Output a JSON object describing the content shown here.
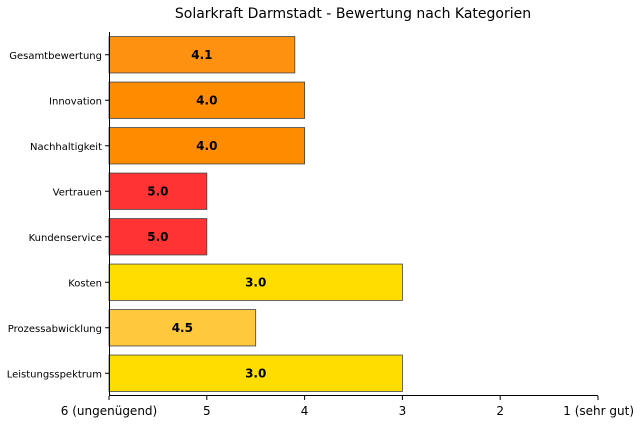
{
  "chart_data": {
    "type": "bar",
    "orientation": "horizontal",
    "title": "Solarkraft Darmstadt - Bewertung nach Kategorien",
    "xlabel": "",
    "ylabel": "",
    "x_axis_reversed": true,
    "xlim": [
      6,
      1
    ],
    "x_ticks": [
      {
        "value": 6,
        "label": "6 (ungenügend)"
      },
      {
        "value": 5,
        "label": "5"
      },
      {
        "value": 4,
        "label": "4"
      },
      {
        "value": 3,
        "label": "3"
      },
      {
        "value": 2,
        "label": "2"
      },
      {
        "value": 1,
        "label": "1 (sehr gut)"
      }
    ],
    "grid": false,
    "bars": [
      {
        "category": "Gesamtbewertung",
        "value": 4.1,
        "label": "4.1",
        "color": "#FF9111"
      },
      {
        "category": "Innovation",
        "value": 4.0,
        "label": "4.0",
        "color": "#FF8C00"
      },
      {
        "category": "Nachhaltigkeit",
        "value": 4.0,
        "label": "4.0",
        "color": "#FF8C00"
      },
      {
        "category": "Vertrauen",
        "value": 5.0,
        "label": "5.0",
        "color": "#FF3333"
      },
      {
        "category": "Kundenservice",
        "value": 5.0,
        "label": "5.0",
        "color": "#FF3333"
      },
      {
        "category": "Kosten",
        "value": 3.0,
        "label": "3.0",
        "color": "#FFDD00"
      },
      {
        "category": "Prozessabwicklung",
        "value": 4.5,
        "label": "4.5",
        "color": "#FFC83D"
      },
      {
        "category": "Leistungsspektrum",
        "value": 3.0,
        "label": "3.0",
        "color": "#FFDD00"
      }
    ]
  }
}
